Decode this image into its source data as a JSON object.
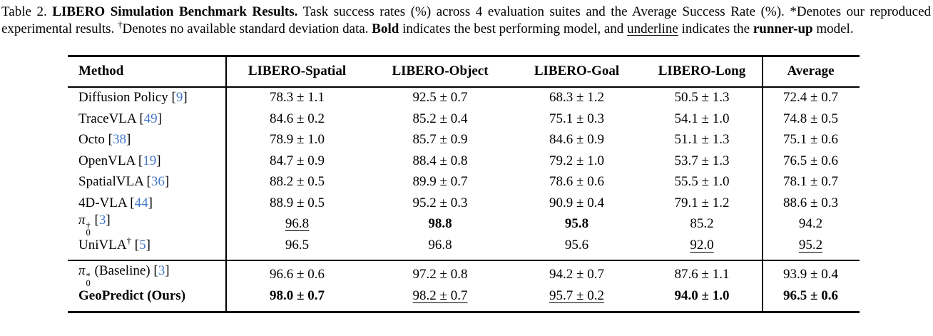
{
  "colors": {
    "citation_blue": "#4678c8",
    "text": "#000000",
    "background": "#ffffff",
    "rule": "#000000"
  },
  "caption": {
    "segments": [
      {
        "text": "Table 2. ",
        "style": "plain"
      },
      {
        "text": "LIBERO Simulation Benchmark Results.",
        "style": "bold"
      },
      {
        "text": " Task success rates (%) across 4 evaluation suites and the Average Success Rate (%). ",
        "style": "plain"
      },
      {
        "text": "*",
        "style": "plain"
      },
      {
        "text": "Denotes our reproduced experimental results. ",
        "style": "plain"
      },
      {
        "text": "†",
        "style": "sup"
      },
      {
        "text": "Denotes no available standard deviation data. ",
        "style": "plain"
      },
      {
        "text": "Bold",
        "style": "bold"
      },
      {
        "text": " indicates the best performing model, and ",
        "style": "plain"
      },
      {
        "text": "underline",
        "style": "underline"
      },
      {
        "text": " indicates the ",
        "style": "plain"
      },
      {
        "text": "runner-up",
        "style": "bold"
      },
      {
        "text": " model.",
        "style": "plain"
      }
    ]
  },
  "table": {
    "columns": [
      "Method",
      "LIBERO-Spatial",
      "LIBERO-Object",
      "LIBERO-Goal",
      "LIBERO-Long",
      "Average"
    ],
    "groups": [
      {
        "rows": [
          {
            "method": [
              {
                "text": "Diffusion Policy [",
                "style": "plain"
              },
              {
                "text": "9",
                "style": "cite"
              },
              {
                "text": "]",
                "style": "plain"
              }
            ],
            "cells": [
              {
                "text": "78.3 ± 1.1",
                "style": "plain"
              },
              {
                "text": "92.5 ± 0.7",
                "style": "plain"
              },
              {
                "text": "68.3 ± 1.2",
                "style": "plain"
              },
              {
                "text": "50.5 ± 1.3",
                "style": "plain"
              },
              {
                "text": "72.4 ± 0.7",
                "style": "plain"
              }
            ]
          },
          {
            "method": [
              {
                "text": "TraceVLA [",
                "style": "plain"
              },
              {
                "text": "49",
                "style": "cite"
              },
              {
                "text": "]",
                "style": "plain"
              }
            ],
            "cells": [
              {
                "text": "84.6 ± 0.2",
                "style": "plain"
              },
              {
                "text": "85.2 ± 0.4",
                "style": "plain"
              },
              {
                "text": "75.1 ± 0.3",
                "style": "plain"
              },
              {
                "text": "54.1 ± 1.0",
                "style": "plain"
              },
              {
                "text": "74.8 ± 0.5",
                "style": "plain"
              }
            ]
          },
          {
            "method": [
              {
                "text": "Octo [",
                "style": "plain"
              },
              {
                "text": "38",
                "style": "cite"
              },
              {
                "text": "]",
                "style": "plain"
              }
            ],
            "cells": [
              {
                "text": "78.9 ± 1.0",
                "style": "plain"
              },
              {
                "text": "85.7 ± 0.9",
                "style": "plain"
              },
              {
                "text": "84.6 ± 0.9",
                "style": "plain"
              },
              {
                "text": "51.1 ± 1.3",
                "style": "plain"
              },
              {
                "text": "75.1 ± 0.6",
                "style": "plain"
              }
            ]
          },
          {
            "method": [
              {
                "text": "OpenVLA [",
                "style": "plain"
              },
              {
                "text": "19",
                "style": "cite"
              },
              {
                "text": "]",
                "style": "plain"
              }
            ],
            "cells": [
              {
                "text": "84.7 ± 0.9",
                "style": "plain"
              },
              {
                "text": "88.4 ± 0.8",
                "style": "plain"
              },
              {
                "text": "79.2 ± 1.0",
                "style": "plain"
              },
              {
                "text": "53.7 ± 1.3",
                "style": "plain"
              },
              {
                "text": "76.5 ± 0.6",
                "style": "plain"
              }
            ]
          },
          {
            "method": [
              {
                "text": "SpatialVLA [",
                "style": "plain"
              },
              {
                "text": "36",
                "style": "cite"
              },
              {
                "text": "]",
                "style": "plain"
              }
            ],
            "cells": [
              {
                "text": "88.2 ± 0.5",
                "style": "plain"
              },
              {
                "text": "89.9 ± 0.7",
                "style": "plain"
              },
              {
                "text": "78.6 ± 0.6",
                "style": "plain"
              },
              {
                "text": "55.5 ± 1.0",
                "style": "plain"
              },
              {
                "text": "78.1 ± 0.7",
                "style": "plain"
              }
            ]
          },
          {
            "method": [
              {
                "text": "4D-VLA [",
                "style": "plain"
              },
              {
                "text": "44",
                "style": "cite"
              },
              {
                "text": "]",
                "style": "plain"
              }
            ],
            "cells": [
              {
                "text": "88.9 ± 0.5",
                "style": "plain"
              },
              {
                "text": "95.2 ± 0.3",
                "style": "plain"
              },
              {
                "text": "90.9 ± 0.4",
                "style": "plain"
              },
              {
                "text": "79.1 ± 1.2",
                "style": "plain"
              },
              {
                "text": "88.6 ± 0.3",
                "style": "plain"
              }
            ]
          },
          {
            "method": [
              {
                "text": "π",
                "style": "italic"
              },
              {
                "stack": {
                  "sup": "†",
                  "sub": "0"
                }
              },
              {
                "text": " [",
                "style": "plain"
              },
              {
                "text": "3",
                "style": "cite"
              },
              {
                "text": "]",
                "style": "plain"
              }
            ],
            "cells": [
              {
                "text": "96.8",
                "style": "underline"
              },
              {
                "text": "98.8",
                "style": "bold"
              },
              {
                "text": "95.8",
                "style": "bold"
              },
              {
                "text": "85.2",
                "style": "plain"
              },
              {
                "text": "94.2",
                "style": "plain"
              }
            ]
          },
          {
            "method": [
              {
                "text": "UniVLA",
                "style": "plain"
              },
              {
                "text": "†",
                "style": "sup"
              },
              {
                "text": " [",
                "style": "plain"
              },
              {
                "text": "5",
                "style": "cite"
              },
              {
                "text": "]",
                "style": "plain"
              }
            ],
            "cells": [
              {
                "text": "96.5",
                "style": "plain"
              },
              {
                "text": "96.8",
                "style": "plain"
              },
              {
                "text": "95.6",
                "style": "plain"
              },
              {
                "text": "92.0",
                "style": "underline"
              },
              {
                "text": "95.2",
                "style": "underline"
              }
            ]
          }
        ]
      },
      {
        "rows": [
          {
            "method": [
              {
                "text": "π",
                "style": "italic"
              },
              {
                "stack": {
                  "sup": "*",
                  "sub": "0"
                }
              },
              {
                "text": " (Baseline) [",
                "style": "plain"
              },
              {
                "text": "3",
                "style": "cite"
              },
              {
                "text": "]",
                "style": "plain"
              }
            ],
            "cells": [
              {
                "text": "96.6 ± 0.6",
                "style": "plain"
              },
              {
                "text": "97.2 ± 0.8",
                "style": "plain"
              },
              {
                "text": "94.2 ± 0.7",
                "style": "plain"
              },
              {
                "text": "87.6 ± 1.1",
                "style": "plain"
              },
              {
                "text": "93.9 ± 0.4",
                "style": "plain"
              }
            ]
          },
          {
            "method": [
              {
                "text": "GeoPredict (Ours)",
                "style": "bold"
              }
            ],
            "cells": [
              {
                "text": "98.0 ± 0.7",
                "style": "bold"
              },
              {
                "text": "98.2 ± 0.7",
                "style": "underline"
              },
              {
                "text": "95.7 ± 0.2",
                "style": "underline"
              },
              {
                "text": "94.0 ± 1.0",
                "style": "bold"
              },
              {
                "text": "96.5 ± 0.6",
                "style": "bold"
              }
            ]
          }
        ]
      }
    ]
  }
}
